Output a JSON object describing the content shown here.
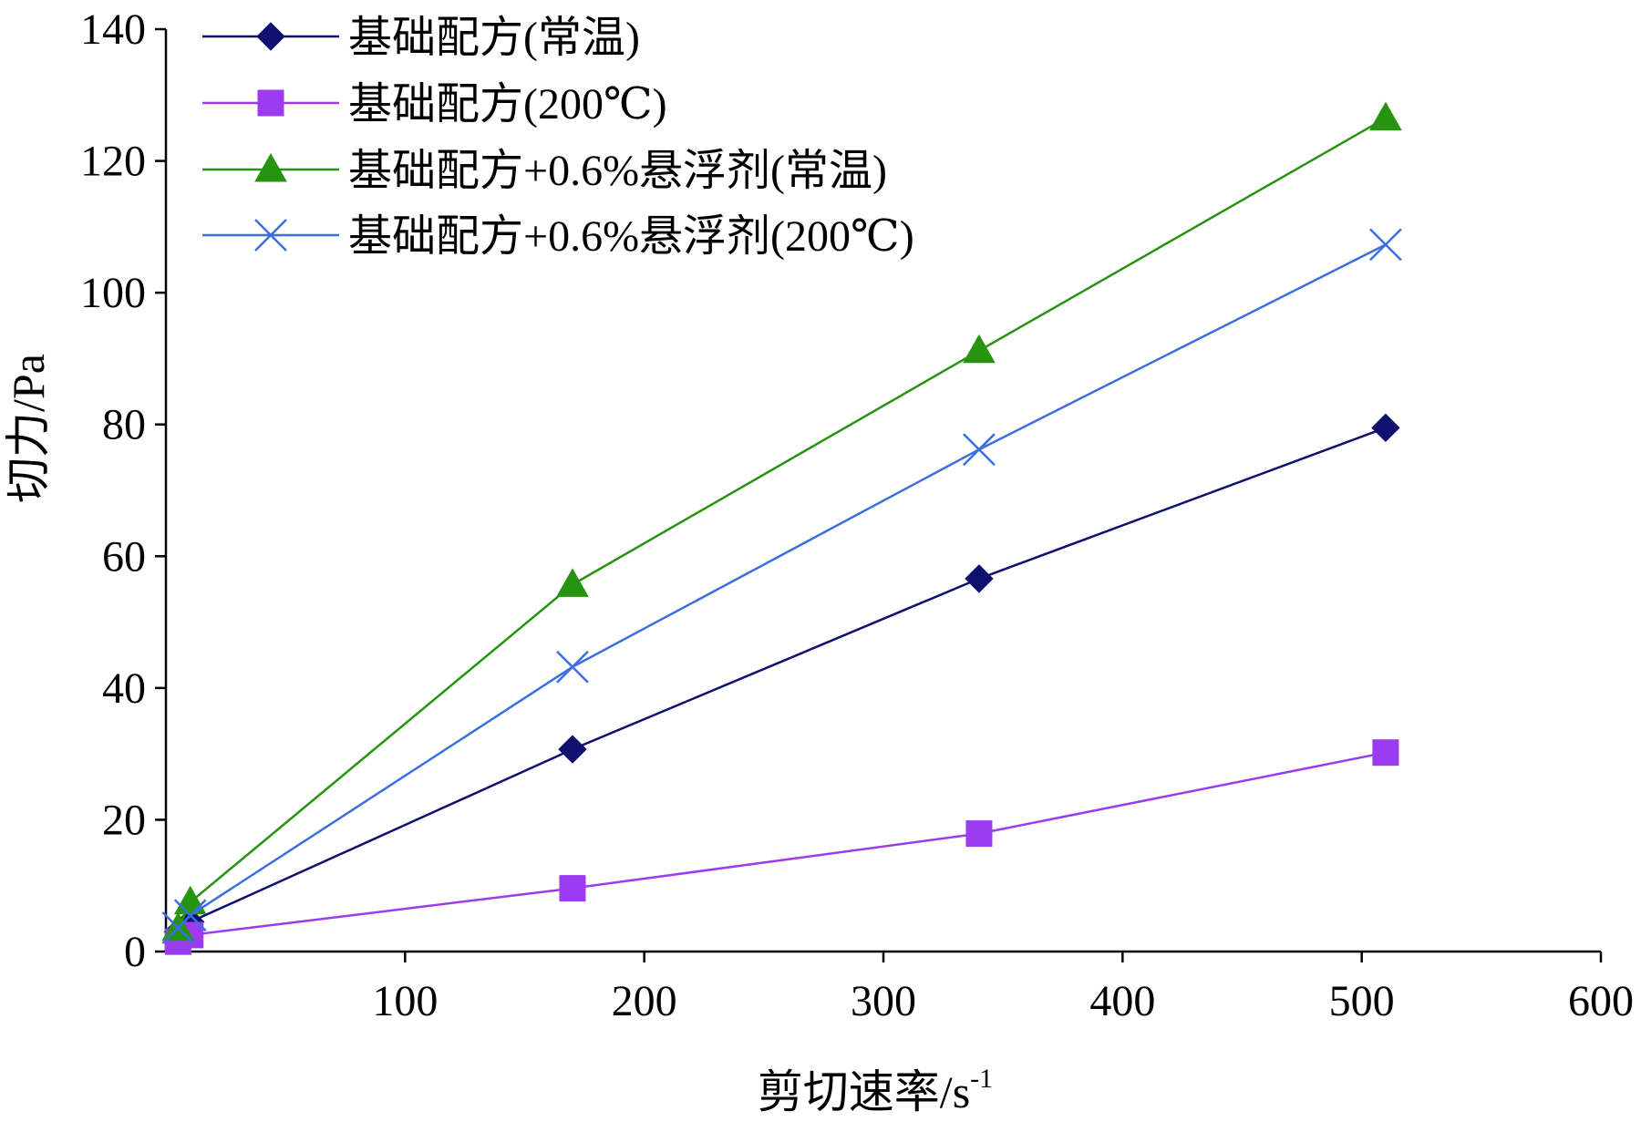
{
  "chart_data": {
    "type": "line",
    "xlabel": "剪切速率/s",
    "xlabel_superscript": "-1",
    "ylabel": "切力/Pa",
    "xlim": [
      0,
      600
    ],
    "ylim": [
      0,
      140
    ],
    "x_ticks": [
      "100",
      "200",
      "300",
      "400",
      "500",
      "600"
    ],
    "y_ticks": [
      "0",
      "20",
      "40",
      "60",
      "80",
      "100",
      "120",
      "140"
    ],
    "legend_position": "top-left",
    "grid": false,
    "series": [
      {
        "name": "基础配方(常温)",
        "color": "#10106e",
        "marker": "diamond",
        "x": [
          5.1,
          10.2,
          170,
          340,
          510
        ],
        "y": [
          3.0,
          4.5,
          30.7,
          56.6,
          79.5
        ]
      },
      {
        "name": "基础配方(200℃)",
        "color": "#9b3cf0",
        "marker": "square",
        "x": [
          5.1,
          10.2,
          170,
          340,
          510
        ],
        "y": [
          1.5,
          2.5,
          9.6,
          17.9,
          30.2
        ]
      },
      {
        "name": "基础配方+0.6%悬浮剂(常温)",
        "color": "#269410",
        "marker": "triangle",
        "x": [
          5.1,
          10.2,
          170,
          340,
          510
        ],
        "y": [
          3.5,
          7.5,
          55.7,
          91.2,
          126.5
        ]
      },
      {
        "name": "基础配方+0.6%悬浮剂(200℃)",
        "color": "#3b6ee0",
        "marker": "x",
        "x": [
          5.1,
          10.2,
          170,
          340,
          510
        ],
        "y": [
          3.6,
          5.5,
          43.2,
          76.2,
          107.3
        ]
      }
    ]
  }
}
